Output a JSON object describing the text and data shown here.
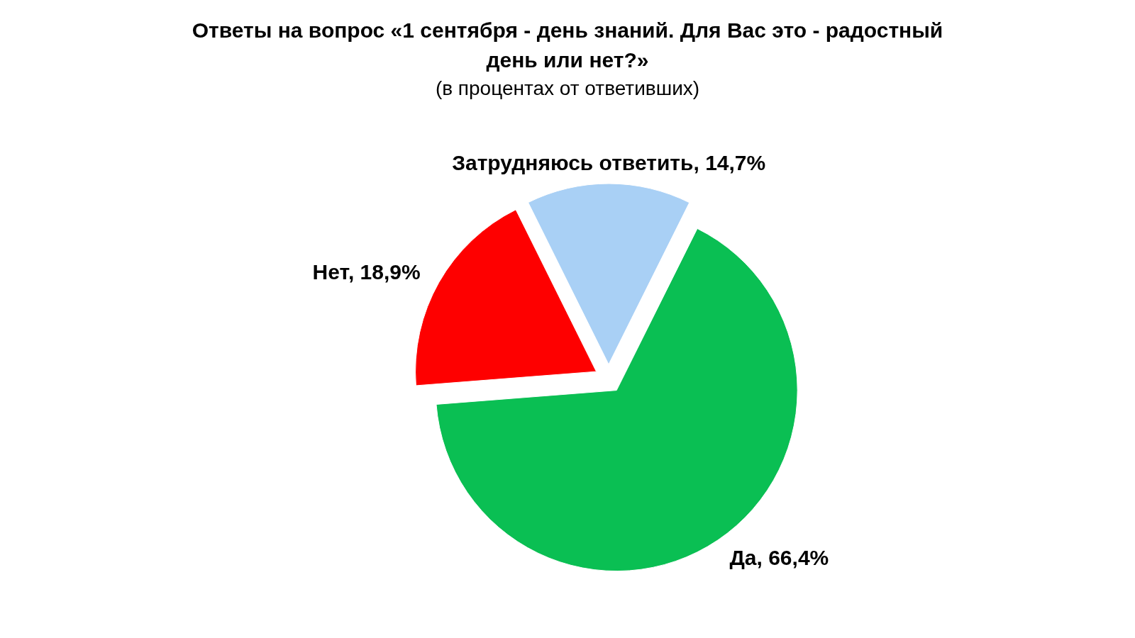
{
  "chart_data": {
    "type": "pie",
    "title": "Ответы на вопрос «1 сентября - день знаний. Для Вас это - радостный день или нет?»",
    "subtitle": "(в процентах от ответивших)",
    "categories": [
      "Да",
      "Нет",
      "Затрудняюсь ответить"
    ],
    "values": [
      66.4,
      18.9,
      14.7
    ],
    "value_labels": [
      "66,4%",
      "18,9%",
      "14,7%"
    ],
    "colors": [
      "#0abf53",
      "#fe0000",
      "#a9d0f5"
    ],
    "legend": false
  }
}
